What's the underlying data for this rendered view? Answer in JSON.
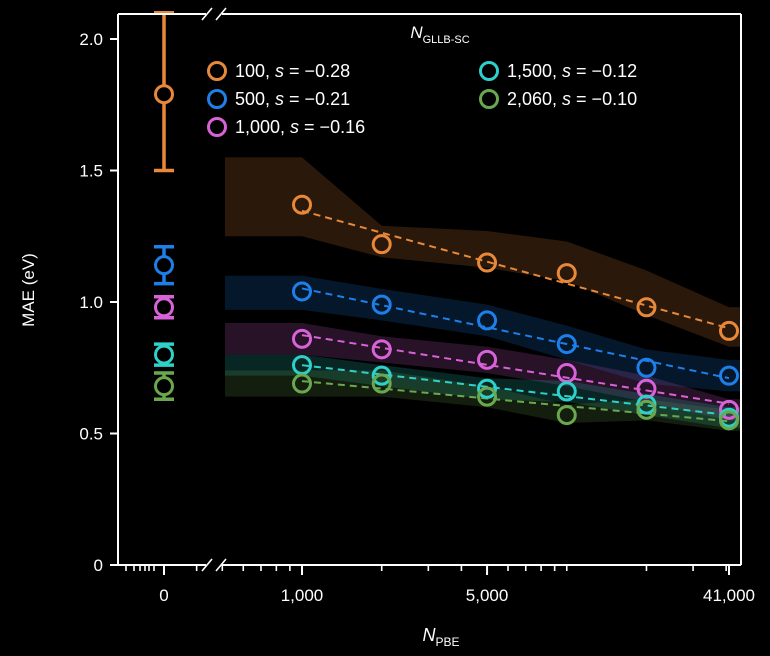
{
  "chart_data": {
    "type": "scatter",
    "ylabel": "MAE (eV)",
    "xlabel": {
      "main": "N",
      "sub": "PBE"
    },
    "legend_title": {
      "main": "N",
      "sub": "GLLB-SC"
    },
    "legend_placement": "top",
    "ylim": [
      0,
      2.1
    ],
    "y_ticks": [
      "0",
      "0.5",
      "1.0",
      "1.5",
      "2.0"
    ],
    "x_log_scale": true,
    "x_broken_axis": true,
    "x_ticks": [
      "0",
      "1,000",
      "5,000",
      "41,000"
    ],
    "x_tick_values": [
      0,
      1000,
      5000,
      41000
    ],
    "grid": false,
    "series": [
      {
        "name": "100",
        "s_label": "s",
        "s_value": "= −0.28",
        "color": "#e8883a",
        "zero": {
          "y": 1.79,
          "err_low": 1.5,
          "err_high": 2.1
        },
        "x": [
          1000,
          2000,
          5000,
          10000,
          20000,
          41000
        ],
        "y": [
          1.37,
          1.22,
          1.15,
          1.11,
          0.98,
          0.89
        ],
        "band_low": [
          1.25,
          1.17,
          1.13,
          1.08,
          0.95,
          0.83
        ],
        "band_high": [
          1.55,
          1.29,
          1.27,
          1.23,
          1.12,
          0.98
        ]
      },
      {
        "name": "500",
        "s_label": "s",
        "s_value": "= −0.21",
        "color": "#1e7fe8",
        "zero": {
          "y": 1.14,
          "err_low": 1.07,
          "err_high": 1.21
        },
        "x": [
          1000,
          2000,
          5000,
          10000,
          20000,
          41000
        ],
        "y": [
          1.04,
          0.99,
          0.93,
          0.84,
          0.75,
          0.72
        ],
        "band_low": [
          0.97,
          0.93,
          0.87,
          0.78,
          0.69,
          0.66
        ],
        "band_high": [
          1.1,
          1.05,
          0.99,
          0.91,
          0.82,
          0.78
        ]
      },
      {
        "name": "1,000",
        "s_label": "s",
        "s_value": "= −0.16",
        "color": "#d862d8",
        "zero": {
          "y": 0.98,
          "err_low": 0.94,
          "err_high": 1.02
        },
        "x": [
          1000,
          2000,
          5000,
          10000,
          20000,
          41000
        ],
        "y": [
          0.86,
          0.82,
          0.78,
          0.73,
          0.67,
          0.59
        ],
        "band_low": [
          0.8,
          0.77,
          0.73,
          0.68,
          0.62,
          0.55
        ],
        "band_high": [
          0.92,
          0.87,
          0.83,
          0.78,
          0.72,
          0.63
        ]
      },
      {
        "name": "1,500",
        "s_label": "s",
        "s_value": "= −0.12",
        "color": "#2fd0c8",
        "zero": {
          "y": 0.8,
          "err_low": 0.76,
          "err_high": 0.84
        },
        "x": [
          1000,
          2000,
          5000,
          10000,
          20000,
          41000
        ],
        "y": [
          0.76,
          0.72,
          0.67,
          0.66,
          0.61,
          0.56
        ],
        "band_low": [
          0.72,
          0.68,
          0.63,
          0.62,
          0.57,
          0.52
        ],
        "band_high": [
          0.8,
          0.76,
          0.71,
          0.7,
          0.65,
          0.6
        ]
      },
      {
        "name": "2,060",
        "s_label": "s",
        "s_value": "= −0.10",
        "color": "#6aa84f",
        "zero": {
          "y": 0.68,
          "err_low": 0.63,
          "err_high": 0.73
        },
        "x": [
          1000,
          2000,
          5000,
          10000,
          20000,
          41000
        ],
        "y": [
          0.69,
          0.69,
          0.64,
          0.57,
          0.59,
          0.55
        ],
        "band_low": [
          0.64,
          0.64,
          0.6,
          0.54,
          0.55,
          0.51
        ],
        "band_high": [
          0.74,
          0.74,
          0.68,
          0.61,
          0.63,
          0.59
        ]
      }
    ]
  }
}
